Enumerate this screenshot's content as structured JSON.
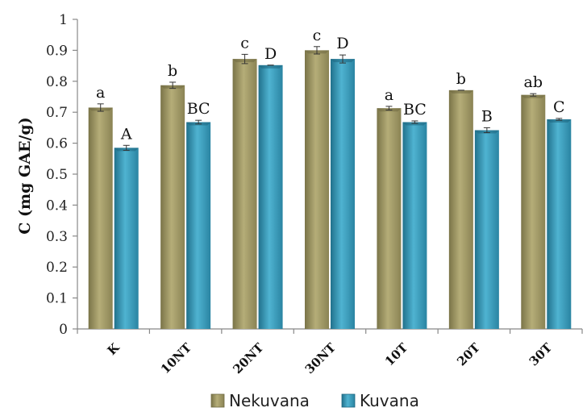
{
  "chart_data": {
    "type": "bar",
    "title": "",
    "xlabel": "",
    "ylabel": "C (mg GAE/g)",
    "ylim": [
      0,
      1
    ],
    "yticks": [
      0,
      0.1,
      0.2,
      0.3,
      0.4,
      0.5,
      0.6,
      0.7,
      0.8,
      0.9,
      1
    ],
    "ytick_labels": [
      "0",
      "0.1",
      "0.2",
      "0.3",
      "0.4",
      "0.5",
      "0.6",
      "0.7",
      "0.8",
      "0.9",
      "1"
    ],
    "grid": false,
    "legend_position": "bottom",
    "categories": [
      "K",
      "10NT",
      "20NT",
      "30NT",
      "10T",
      "20T",
      "30T"
    ],
    "series": [
      {
        "name": "Nekuvana",
        "color": "#9c9462",
        "values": [
          0.715,
          0.787,
          0.872,
          0.9,
          0.713,
          0.771,
          0.756
        ],
        "errors": [
          0.012,
          0.01,
          0.015,
          0.012,
          0.006,
          0.0,
          0.004
        ],
        "labels": [
          "a",
          "b",
          "c",
          "c",
          "a",
          "b",
          "ab"
        ]
      },
      {
        "name": "Kuvana",
        "color": "#3a9ab8",
        "values": [
          0.585,
          0.668,
          0.852,
          0.872,
          0.668,
          0.642,
          0.677
        ],
        "errors": [
          0.008,
          0.006,
          0.0,
          0.013,
          0.004,
          0.008,
          0.003
        ],
        "labels": [
          "A",
          "BC",
          "D",
          "D",
          "BC",
          "B",
          "C"
        ]
      }
    ]
  }
}
